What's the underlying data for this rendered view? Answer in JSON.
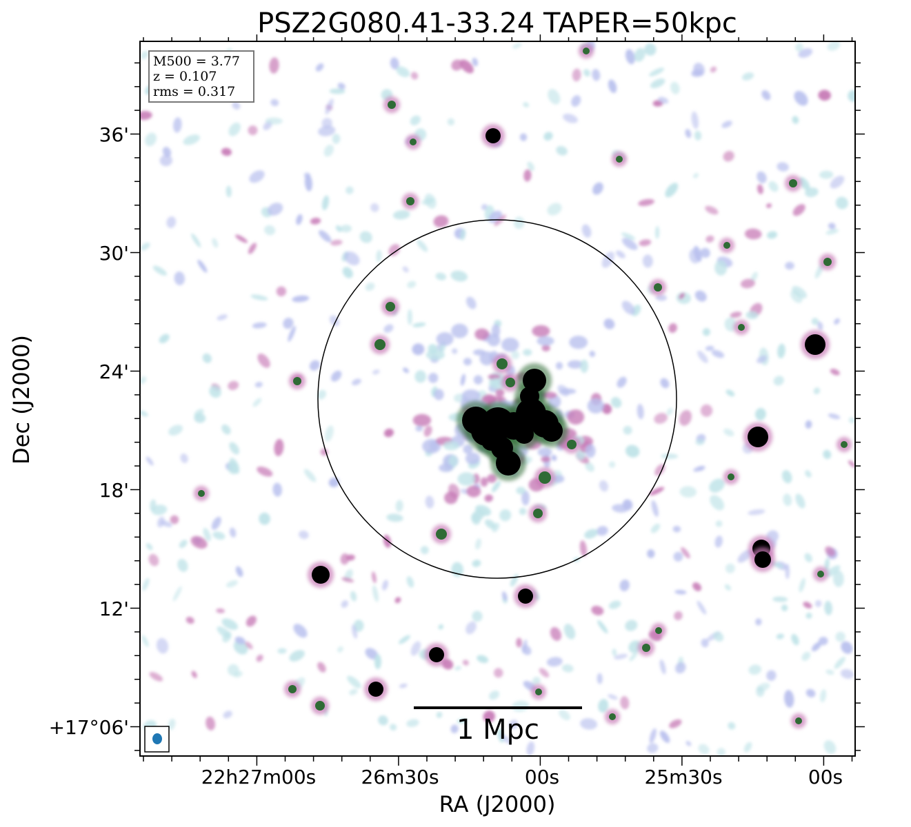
{
  "chart_data": {
    "type": "heatmap",
    "title": "PSZ2G080.41-33.24 TAPER=50kpc",
    "xlabel": "RA (J2000)",
    "ylabel": "Dec (J2000)",
    "x_ticks": [
      "22h27m00s",
      "26m30s",
      "00s",
      "25m30s",
      "00s"
    ],
    "y_ticks": [
      "36'",
      "30'",
      "24'",
      "18'",
      "12'",
      "+17°06'"
    ],
    "info_box": [
      "M500 = 3.77",
      "z = 0.107",
      "rms = 0.317"
    ],
    "scale_bar_label": "1 Mpc",
    "grid": false,
    "colors": {
      "faint": "#bfe3e8",
      "low": "#b9c0ee",
      "mid": "#c77ab6",
      "high": "#9a5a3c",
      "peak": "#000000",
      "beam": "#1f77b4",
      "core": "#2f6b35"
    },
    "sources_description": "radio point sources and central extended emission"
  }
}
